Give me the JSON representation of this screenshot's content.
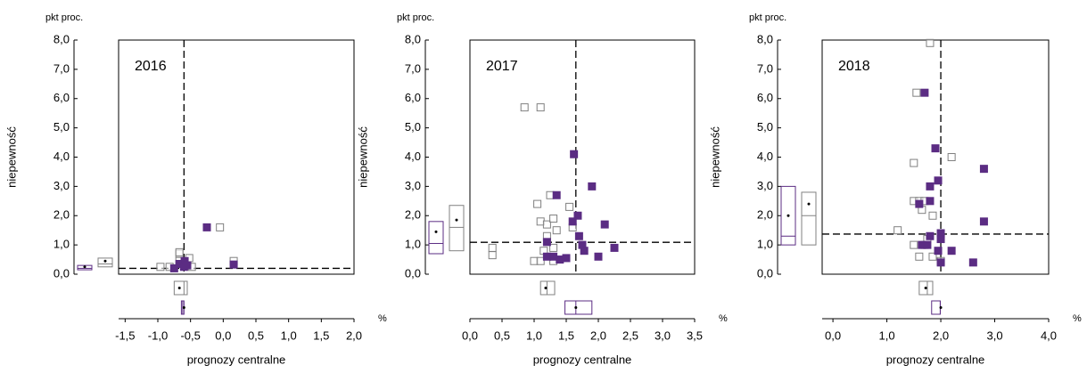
{
  "chart_data": [
    {
      "type": "scatter",
      "title": "2016",
      "y_unit": "pkt proc.",
      "ylabel": "niepewność",
      "xlabel": "prognozy centralne",
      "x_unit": "%",
      "xlim": [
        -1.6,
        2.0
      ],
      "ylim": [
        0,
        8
      ],
      "xticks": [
        {
          "value": -1.5,
          "label": "-1,5"
        },
        {
          "value": -1,
          "label": "-1,0"
        },
        {
          "value": -0.5,
          "label": "-0,5"
        },
        {
          "value": 0,
          "label": "0,0"
        },
        {
          "value": 0.5,
          "label": "0,5"
        },
        {
          "value": 1,
          "label": "1,0"
        },
        {
          "value": 1.5,
          "label": "1,5"
        },
        {
          "value": 2,
          "label": "2,0"
        }
      ],
      "yticks": [
        {
          "value": 0,
          "label": "0,0"
        },
        {
          "value": 1,
          "label": "1,0"
        },
        {
          "value": 2,
          "label": "2,0"
        },
        {
          "value": 3,
          "label": "3,0"
        },
        {
          "value": 4,
          "label": "4,0"
        },
        {
          "value": 5,
          "label": "5,0"
        },
        {
          "value": 6,
          "label": "6,0"
        },
        {
          "value": 7,
          "label": "7,0"
        },
        {
          "value": 8,
          "label": "8,0"
        }
      ],
      "vline": -0.6,
      "hline": 0.2,
      "series": [
        {
          "color": "#808080",
          "filled": false,
          "x": [
            -0.05,
            0.16,
            -0.96,
            -0.82,
            -0.67,
            -0.67,
            -0.52,
            -0.48,
            -0.67
          ],
          "y": [
            1.6,
            0.45,
            0.25,
            0.25,
            0.7,
            0.45,
            0.55,
            0.25,
            0.75
          ],
          "y_box": {
            "q1": 0.25,
            "median": 0.35,
            "q3": 0.55,
            "mean": 0.45
          },
          "x_box": {
            "q1": -0.75,
            "median": -0.6,
            "q3": -0.55,
            "mean": -0.67
          }
        },
        {
          "color": "#5b2c83",
          "filled": true,
          "x": [
            -0.25,
            0.16,
            -0.75,
            -0.67,
            -0.59,
            -0.6,
            -0.55
          ],
          "y": [
            1.6,
            0.33,
            0.2,
            0.35,
            0.45,
            0.25,
            0.3
          ],
          "y_box": {
            "q1": 0.15,
            "median": 0.2,
            "q3": 0.3,
            "mean": 0.25
          },
          "x_box": {
            "q1": -0.64,
            "median": -0.62,
            "q3": -0.6,
            "mean": -0.6
          }
        }
      ]
    },
    {
      "type": "scatter",
      "title": "2017",
      "y_unit": "pkt proc.",
      "ylabel": "niepewność",
      "xlabel": "prognozy centralne",
      "x_unit": "%",
      "xlim": [
        0,
        3.5
      ],
      "ylim": [
        0,
        8
      ],
      "xticks": [
        {
          "value": 0,
          "label": "0,0"
        },
        {
          "value": 0.5,
          "label": "0,5"
        },
        {
          "value": 1,
          "label": "1,0"
        },
        {
          "value": 1.5,
          "label": "1,5"
        },
        {
          "value": 2,
          "label": "2,0"
        },
        {
          "value": 2.5,
          "label": "2,5"
        },
        {
          "value": 3,
          "label": "3,0"
        },
        {
          "value": 3.5,
          "label": "3,5"
        }
      ],
      "yticks": [
        {
          "value": 0,
          "label": "0,0"
        },
        {
          "value": 1,
          "label": "1,0"
        },
        {
          "value": 2,
          "label": "2,0"
        },
        {
          "value": 3,
          "label": "3,0"
        },
        {
          "value": 4,
          "label": "4,0"
        },
        {
          "value": 5,
          "label": "5,0"
        },
        {
          "value": 6,
          "label": "6,0"
        },
        {
          "value": 7,
          "label": "7,0"
        },
        {
          "value": 8,
          "label": "8,0"
        }
      ],
      "vline": 1.65,
      "hline": 1.09,
      "series": [
        {
          "color": "#808080",
          "filled": false,
          "x": [
            0.35,
            0.35,
            0.85,
            1.1,
            1.05,
            1.1,
            1.2,
            1.3,
            1.35,
            1.2,
            1.15,
            1.0,
            1.1,
            1.3,
            1.55,
            1.25,
            1.3,
            1.6
          ],
          "y": [
            0.9,
            0.65,
            5.7,
            5.7,
            2.4,
            1.8,
            1.7,
            1.9,
            1.5,
            1.3,
            0.8,
            0.45,
            0.45,
            0.45,
            2.3,
            2.7,
            0.9,
            1.6
          ],
          "y_box": {
            "q1": 0.8,
            "median": 1.6,
            "q3": 2.35,
            "mean": 1.85
          },
          "x_box": {
            "q1": 1.1,
            "median": 1.2,
            "q3": 1.32,
            "mean": 1.18
          }
        },
        {
          "color": "#5b2c83",
          "filled": true,
          "x": [
            1.62,
            1.9,
            1.35,
            1.68,
            2.1,
            1.6,
            1.2,
            1.7,
            1.75,
            1.78,
            2.25,
            2.0,
            1.3,
            1.4,
            1.5,
            1.2
          ],
          "y": [
            4.1,
            3.0,
            2.7,
            2.0,
            1.7,
            1.8,
            1.1,
            1.3,
            1.0,
            0.8,
            0.9,
            0.6,
            0.6,
            0.5,
            0.55,
            0.6
          ],
          "y_box": {
            "q1": 0.7,
            "median": 1.05,
            "q3": 1.8,
            "mean": 1.45
          },
          "x_box": {
            "q1": 1.48,
            "median": 1.65,
            "q3": 1.9,
            "mean": 1.65
          }
        }
      ]
    },
    {
      "type": "scatter",
      "title": "2018",
      "y_unit": "pkt proc.",
      "ylabel": "niepewność",
      "xlabel": "prognozy centralne",
      "x_unit": "%",
      "xlim": [
        -0.2,
        4.0
      ],
      "ylim": [
        0,
        8
      ],
      "xticks": [
        {
          "value": 0,
          "label": "0,0"
        },
        {
          "value": 1,
          "label": "1,0"
        },
        {
          "value": 2,
          "label": "2,0"
        },
        {
          "value": 3,
          "label": "3,0"
        },
        {
          "value": 4,
          "label": "4,0"
        }
      ],
      "yticks": [
        {
          "value": 0,
          "label": "0,0"
        },
        {
          "value": 1,
          "label": "1,0"
        },
        {
          "value": 2,
          "label": "2,0"
        },
        {
          "value": 3,
          "label": "3,0"
        },
        {
          "value": 4,
          "label": "4,0"
        },
        {
          "value": 5,
          "label": "5,0"
        },
        {
          "value": 6,
          "label": "6,0"
        },
        {
          "value": 7,
          "label": "7,0"
        },
        {
          "value": 8,
          "label": "8,0"
        }
      ],
      "vline": 2.0,
      "hline": 1.37,
      "series": [
        {
          "color": "#808080",
          "filled": false,
          "x": [
            1.8,
            1.55,
            1.5,
            2.2,
            1.5,
            1.6,
            1.7,
            1.65,
            1.85,
            1.2,
            1.5,
            1.6,
            1.85,
            2.0,
            1.7,
            1.75
          ],
          "y": [
            7.9,
            6.2,
            3.8,
            4.0,
            2.5,
            2.5,
            2.5,
            2.2,
            2.0,
            1.5,
            1.0,
            0.6,
            0.6,
            0.45,
            1.0,
            1.2
          ],
          "y_box": {
            "q1": 1.0,
            "median": 2.0,
            "q3": 2.8,
            "mean": 2.4
          },
          "x_box": {
            "q1": 1.6,
            "median": 1.75,
            "q3": 1.85,
            "mean": 1.72
          }
        },
        {
          "color": "#5b2c83",
          "filled": true,
          "x": [
            1.7,
            1.9,
            2.8,
            1.95,
            1.8,
            1.6,
            1.8,
            2.8,
            2.0,
            2.0,
            1.8,
            1.65,
            1.75,
            1.95,
            2.2,
            2.6,
            2.0
          ],
          "y": [
            6.2,
            4.3,
            3.6,
            3.2,
            3.0,
            2.4,
            2.5,
            1.8,
            1.4,
            1.2,
            1.3,
            1.0,
            1.0,
            0.8,
            0.8,
            0.4,
            0.4
          ],
          "y_box": {
            "q1": 1.0,
            "median": 1.3,
            "q3": 3.0,
            "mean": 2.0
          },
          "x_box": {
            "q1": 1.83,
            "median": 1.99,
            "q3": 1.99,
            "mean": 2.0
          }
        }
      ]
    }
  ]
}
